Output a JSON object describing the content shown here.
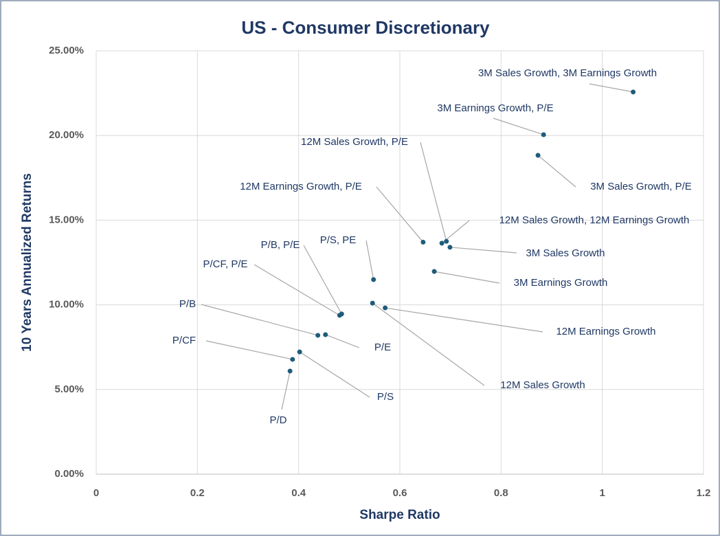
{
  "chart_data": {
    "type": "scatter",
    "title": "US - Consumer Discretionary",
    "x_label": "Sharpe Ratio",
    "y_label": "10 Years Annualized Returns",
    "color": "#1f5c7a",
    "point_labels": [
      "3M Sales Growth, 3M Earnings Growth",
      "3M Earnings Growth, P/E",
      "3M Sales Growth, P/E",
      "12M Sales Growth, P/E",
      "12M Sales Growth, 12M Earnings Growth",
      "3M Sales Growth",
      "3M Earnings Growth",
      "P/S, PE",
      "12M Earnings Growth",
      "12M Sales Growth",
      "P/B, P/E",
      "P/CF, P/E",
      "P/E",
      "P/B",
      "P/S",
      "P/CF",
      "P/D",
      "12M Earnings Growth, P/E"
    ],
    "x": [
      1.061,
      0.884,
      0.873,
      0.692,
      0.683,
      0.699,
      0.668,
      0.548,
      0.571,
      0.546,
      0.485,
      0.481,
      0.453,
      0.438,
      0.402,
      0.388,
      0.383,
      0.646
    ],
    "y": [
      22.57,
      20.05,
      18.83,
      13.75,
      13.64,
      13.4,
      11.97,
      11.49,
      9.82,
      10.1,
      9.46,
      9.38,
      8.24,
      8.2,
      7.22,
      6.78,
      6.09,
      13.7
    ],
    "xlim": [
      0,
      1.2
    ],
    "xticks": [
      0,
      0.2,
      0.4,
      0.6,
      0.8,
      1,
      1.2
    ],
    "ylim": [
      0,
      25
    ],
    "yticks": [
      {
        "value": 0,
        "label": "0.00%"
      },
      {
        "value": 5,
        "label": "5.00%"
      },
      {
        "value": 10,
        "label": "10.00%"
      },
      {
        "value": 15,
        "label": "15.00%"
      },
      {
        "value": 20,
        "label": "20.00%"
      },
      {
        "value": 25,
        "label": "25.00%"
      }
    ],
    "grid": true
  }
}
